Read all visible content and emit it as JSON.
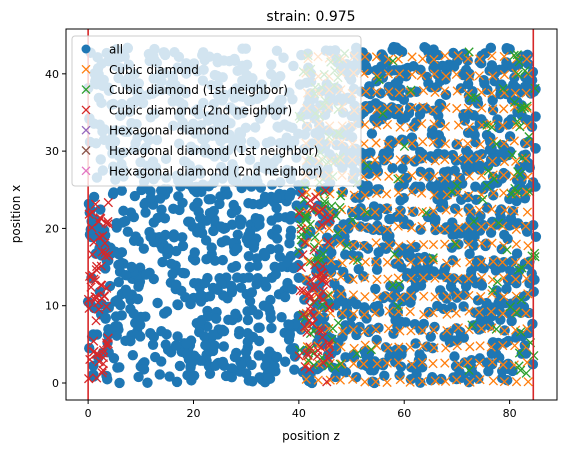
{
  "chart_data": {
    "type": "scatter",
    "title": "strain: 0.975",
    "xlabel": "position z",
    "ylabel": "position x",
    "xlim": [
      -4.2,
      89.0
    ],
    "ylim": [
      -2.2,
      45.8
    ],
    "xticks": [
      0,
      20,
      40,
      60,
      80
    ],
    "yticks": [
      0,
      10,
      20,
      30,
      40
    ],
    "grid": false,
    "legend_position": "upper-left",
    "vertical_lines": [
      0,
      84.5
    ],
    "vertical_line_color": "#d62728",
    "series": [
      {
        "name": "all",
        "marker": "circle",
        "color": "#1f77b4",
        "region": {
          "z": [
            0,
            85
          ],
          "x": [
            0,
            43.5
          ]
        }
      },
      {
        "name": "Cubic diamond",
        "marker": "x",
        "color": "#ff7f0e",
        "region": {
          "z": [
            41,
            85
          ],
          "x": [
            0,
            43
          ]
        }
      },
      {
        "name": "Cubic diamond (1st neighbor)",
        "marker": "x",
        "color": "#2ca02c",
        "region": {
          "z": [
            40,
            85
          ],
          "x": [
            0,
            43
          ]
        }
      },
      {
        "name": "Cubic diamond (2nd neighbor)",
        "marker": "x",
        "color": "#d62728",
        "region": {
          "z": [
            [
              0,
              4
            ],
            [
              40,
              47
            ]
          ],
          "x": [
            0,
            25
          ]
        }
      },
      {
        "name": "Hexagonal diamond",
        "marker": "x",
        "color": "#9467bd",
        "region": null
      },
      {
        "name": "Hexagonal diamond (1st neighbor)",
        "marker": "x",
        "color": "#8c564b",
        "region": null
      },
      {
        "name": "Hexagonal diamond (2nd neighbor)",
        "marker": "x",
        "color": "#e377c2",
        "region": null
      }
    ]
  }
}
